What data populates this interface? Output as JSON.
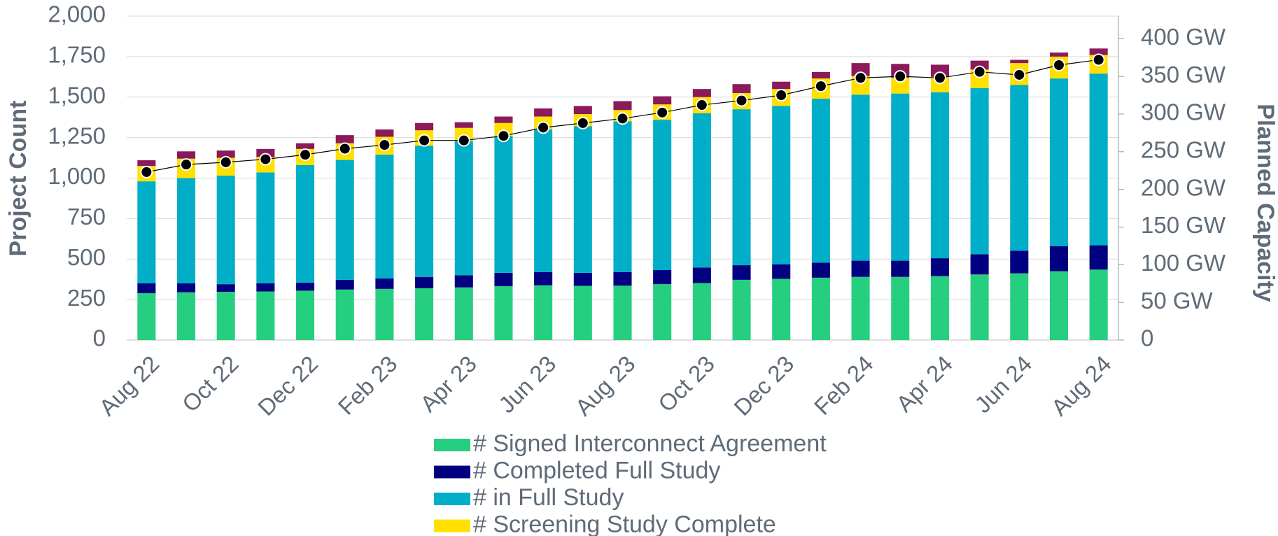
{
  "chart_data": {
    "type": "stacked-bar-line",
    "y_label": "Project Count",
    "y2_label": "Planned Capacity",
    "categories": [
      "Aug 22",
      null,
      "Oct 22",
      null,
      "Dec 22",
      null,
      "Feb 23",
      null,
      "Apr 23",
      null,
      "Jun 23",
      null,
      "Aug 23",
      null,
      "Oct 23",
      null,
      "Dec 23",
      null,
      "Feb 24",
      null,
      "Apr 24",
      null,
      "Jun 24",
      null,
      "Aug 24"
    ],
    "series": [
      {
        "name": "# Signed Interconnect Agreement",
        "color": "#26cf7f",
        "values": [
          289,
          295,
          298,
          300,
          305,
          312,
          316,
          320,
          325,
          333,
          338,
          335,
          336,
          345,
          352,
          372,
          378,
          385,
          390,
          390,
          395,
          405,
          412,
          425,
          435
        ]
      },
      {
        "name": "# Completed Full Study",
        "color": "#000080",
        "values": [
          61,
          55,
          47,
          50,
          50,
          60,
          64,
          70,
          75,
          82,
          82,
          80,
          84,
          87,
          96,
          90,
          90,
          93,
          100,
          100,
          110,
          125,
          140,
          155,
          150
        ]
      },
      {
        "name": "# in Full Study",
        "color": "#00aec7",
        "values": [
          630,
          650,
          670,
          685,
          725,
          740,
          765,
          810,
          830,
          845,
          880,
          905,
          930,
          928,
          952,
          963,
          977,
          1012,
          1025,
          1032,
          1025,
          1025,
          1023,
          1035,
          1060
        ]
      },
      {
        "name": "# Screening Study Complete",
        "color": "#ffe000",
        "values": [
          95,
          120,
          110,
          95,
          100,
          103,
          110,
          95,
          80,
          80,
          80,
          75,
          70,
          95,
          100,
          100,
          105,
          125,
          115,
          98,
          95,
          115,
          135,
          135,
          115
        ]
      },
      {
        "color": "#8b1a5a",
        "values": [
          35,
          45,
          45,
          50,
          35,
          50,
          45,
          45,
          35,
          40,
          50,
          50,
          55,
          50,
          50,
          55,
          45,
          40,
          80,
          85,
          75,
          55,
          20,
          25,
          40
        ]
      },
      {
        "type": "line",
        "axis": "y2",
        "color": "#000000",
        "values": [
          223,
          233,
          236,
          240,
          246,
          254,
          259,
          265,
          265,
          271,
          282,
          288,
          294,
          302,
          312,
          318,
          325,
          337,
          348,
          350,
          348,
          356,
          352,
          365,
          372
        ]
      }
    ],
    "ylim": [
      0,
      2000
    ],
    "yticks": [
      0,
      250,
      500,
      750,
      {
        "value": 1000,
        "label": "1,000"
      },
      {
        "value": 1250,
        "label": "1,250"
      },
      {
        "value": 1500,
        "label": "1,500"
      },
      {
        "value": 1750,
        "label": "1,750"
      },
      {
        "value": 2000,
        "label": "2,000"
      }
    ],
    "y2lim": [
      0,
      430
    ],
    "y2ticks": [
      0,
      {
        "value": 50,
        "label": "50 GW"
      },
      {
        "value": 100,
        "label": "100 GW"
      },
      {
        "value": 150,
        "label": "150 GW"
      },
      {
        "value": 200,
        "label": "200 GW"
      },
      {
        "value": 250,
        "label": "250 GW"
      },
      {
        "value": 300,
        "label": "300 GW"
      },
      {
        "value": 350,
        "label": "350 GW"
      },
      {
        "value": 400,
        "label": "400 GW"
      }
    ],
    "grid": true,
    "legend": "bottom"
  }
}
